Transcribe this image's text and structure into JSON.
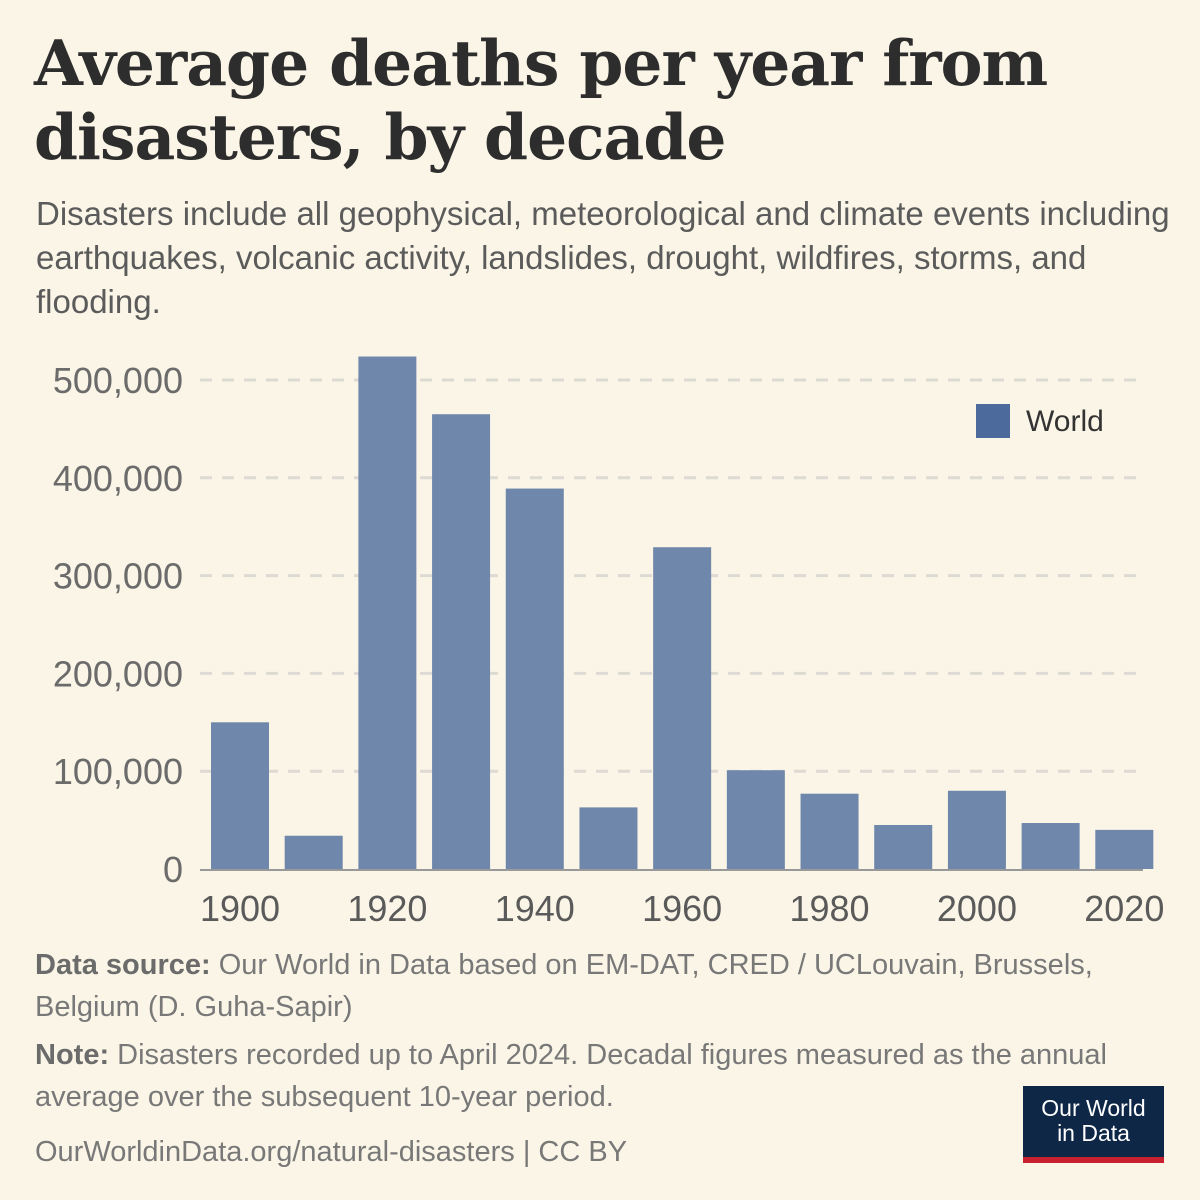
{
  "header": {
    "title": "Average deaths per year from disasters, by decade",
    "subtitle": "Disasters include all geophysical, meteorological and climate events including earthquakes, volcanic activity, landslides, drought, wildfires, storms, and flooding."
  },
  "chart_data": {
    "type": "bar",
    "categories": [
      "1900",
      "1910",
      "1920",
      "1930",
      "1940",
      "1950",
      "1960",
      "1970",
      "1980",
      "1990",
      "2000",
      "2010",
      "2020"
    ],
    "series": [
      {
        "name": "World",
        "values": [
          150000,
          34000,
          524000,
          465000,
          389000,
          63000,
          329000,
          101000,
          77000,
          45000,
          80000,
          47000,
          40000
        ]
      }
    ],
    "x_tick_labels": [
      "1900",
      "1920",
      "1940",
      "1960",
      "1980",
      "2000",
      "2020"
    ],
    "y_ticks": [
      0,
      100000,
      200000,
      300000,
      400000,
      500000
    ],
    "y_tick_labels": [
      "0",
      "100,000",
      "200,000",
      "300,000",
      "400,000",
      "500,000"
    ],
    "ylim": [
      0,
      500000
    ],
    "legend_position": "top-right",
    "grid": true,
    "colors": {
      "bar": "#6e87ab",
      "legend_swatch": "#4c6a9c",
      "grid": "#dcdad3",
      "axis": "#999999"
    }
  },
  "footer": {
    "source_label": "Data source:",
    "source_text": "Our World in Data based on EM-DAT, CRED / UCLouvain, Brussels, Belgium (D. Guha-Sapir)",
    "note_label": "Note:",
    "note_text": "Disasters recorded up to April 2024. Decadal figures measured as the annual average over the subsequent 10-year period.",
    "url": "OurWorldinData.org/natural-disasters | CC BY"
  },
  "logo": {
    "line1": "Our World",
    "line2": "in Data"
  }
}
